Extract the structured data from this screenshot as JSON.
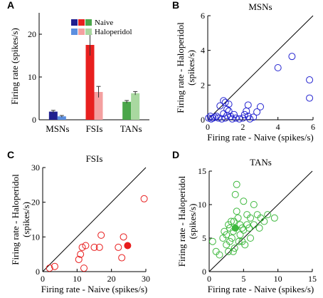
{
  "colors": {
    "msn_naive": "#1f1f8f",
    "msn_halo": "#5b8fe0",
    "fsi_naive": "#e8201f",
    "fsi_halo": "#f4a0a0",
    "tan_naive": "#4aa64a",
    "tan_halo": "#a9d8a0",
    "msn_marker": "#2424d0",
    "fsi_marker": "#e81c1c",
    "tan_marker": "#3db83d"
  },
  "chart_data": [
    {
      "id": "A",
      "type": "bar",
      "panel_label": "A",
      "ylabel": "Firing rate (spikes/s)",
      "ylim": [
        0,
        25
      ],
      "yticks": [
        0,
        10,
        20
      ],
      "categories": [
        "MSNs",
        "FSIs",
        "TANs"
      ],
      "series": [
        {
          "name": "Naive",
          "values": [
            1.9,
            17.5,
            4.2
          ],
          "errors": [
            0.3,
            2.5,
            0.3
          ]
        },
        {
          "name": "Haloperidol",
          "values": [
            0.8,
            6.5,
            6.2
          ],
          "errors": [
            0.2,
            1.3,
            0.4
          ]
        }
      ],
      "legend": {
        "placement": "top-right"
      }
    },
    {
      "id": "B",
      "type": "scatter",
      "panel_label": "B",
      "title": "MSNs",
      "xlabel": "Firing rate - Naive (spikes/s)",
      "ylabel": "Firing rate - Haloperidol (spikes/s)",
      "xlim": [
        0,
        6
      ],
      "ylim": [
        0,
        6
      ],
      "xticks": [
        0,
        2,
        4,
        6
      ],
      "yticks": [
        0,
        2,
        4,
        6
      ],
      "identity_line": true,
      "points": [
        [
          0.3,
          0.1
        ],
        [
          0.4,
          0.15
        ],
        [
          0.2,
          0.05
        ],
        [
          0.5,
          0.2
        ],
        [
          0.6,
          0.1
        ],
        [
          0.8,
          0.05
        ],
        [
          1.0,
          0.1
        ],
        [
          1.1,
          0.25
        ],
        [
          0.9,
          0.35
        ],
        [
          1.2,
          0.5
        ],
        [
          1.3,
          0.2
        ],
        [
          1.5,
          0.3
        ],
        [
          1.6,
          0.1
        ],
        [
          1.8,
          0.05
        ],
        [
          2.0,
          0.1
        ],
        [
          2.1,
          0.3
        ],
        [
          2.2,
          0.5
        ],
        [
          2.3,
          0.2
        ],
        [
          2.4,
          0.05
        ],
        [
          2.6,
          0.15
        ],
        [
          2.8,
          0.45
        ],
        [
          3.0,
          0.75
        ],
        [
          0.7,
          0.8
        ],
        [
          0.9,
          1.1
        ],
        [
          1.0,
          1.0
        ],
        [
          1.2,
          0.9
        ],
        [
          2.3,
          0.85
        ],
        [
          1.1,
          0.6
        ],
        [
          0.15,
          0.2
        ],
        [
          4.0,
          3.0
        ],
        [
          4.8,
          3.65
        ],
        [
          5.8,
          2.3
        ],
        [
          5.8,
          1.25
        ],
        [
          0.05,
          0.1
        ],
        [
          1.4,
          0.05
        ]
      ],
      "filled_points": []
    },
    {
      "id": "C",
      "type": "scatter",
      "panel_label": "C",
      "title": "FSIs",
      "xlabel": "Firing rate - Naive (spikes/s)",
      "ylabel": "Firing rate - Haloperidol (spikes/s)",
      "xlim": [
        0,
        30
      ],
      "ylim": [
        0,
        30
      ],
      "xticks": [
        0,
        10,
        20,
        30
      ],
      "yticks": [
        0,
        10,
        20,
        30
      ],
      "identity_line": true,
      "points": [
        [
          2.0,
          1.0
        ],
        [
          3.5,
          1.5
        ],
        [
          10.5,
          3.5
        ],
        [
          11.0,
          5.0
        ],
        [
          11.5,
          7.0
        ],
        [
          12.0,
          1.0
        ],
        [
          15.0,
          7.0
        ],
        [
          16.5,
          7.0
        ],
        [
          17.0,
          10.5
        ],
        [
          22.0,
          7.0
        ],
        [
          23.0,
          4.0
        ],
        [
          23.5,
          10.0
        ],
        [
          29.5,
          21.0
        ],
        [
          12.5,
          7.5
        ]
      ],
      "filled_points": [
        [
          24.7,
          7.5
        ]
      ]
    },
    {
      "id": "D",
      "type": "scatter",
      "panel_label": "D",
      "title": "TANs",
      "xlabel": "Firing rate - Naive (spikes/s)",
      "ylabel": "Firing rate - Haloperidol (spikes/s)",
      "xlim": [
        0,
        15
      ],
      "ylim": [
        0,
        15
      ],
      "xticks": [
        0,
        5,
        10,
        15
      ],
      "yticks": [
        0,
        5,
        10,
        15
      ],
      "identity_line": true,
      "points": [
        [
          0.5,
          4.5
        ],
        [
          1.0,
          3.0
        ],
        [
          1.5,
          2.5
        ],
        [
          2.0,
          5.0
        ],
        [
          2.2,
          6.0
        ],
        [
          2.5,
          4.0
        ],
        [
          2.5,
          5.5
        ],
        [
          2.8,
          7.0
        ],
        [
          3.0,
          4.5
        ],
        [
          3.0,
          6.5
        ],
        [
          3.2,
          7.5
        ],
        [
          3.3,
          5.0
        ],
        [
          3.5,
          6.0
        ],
        [
          3.6,
          7.5
        ],
        [
          3.7,
          3.5
        ],
        [
          3.8,
          11.5
        ],
        [
          4.0,
          13.0
        ],
        [
          4.0,
          9.0
        ],
        [
          4.2,
          8.0
        ],
        [
          4.3,
          4.5
        ],
        [
          4.5,
          5.5
        ],
        [
          4.5,
          7.0
        ],
        [
          4.8,
          6.5
        ],
        [
          5.0,
          10.5
        ],
        [
          5.2,
          4.0
        ],
        [
          5.5,
          7.0
        ],
        [
          5.5,
          8.5
        ],
        [
          5.8,
          6.5
        ],
        [
          6.0,
          5.0
        ],
        [
          6.0,
          8.0
        ],
        [
          6.5,
          10.0
        ],
        [
          6.5,
          7.0
        ],
        [
          7.0,
          8.5
        ],
        [
          7.3,
          6.5
        ],
        [
          7.5,
          8.0
        ],
        [
          8.0,
          7.5
        ],
        [
          8.5,
          8.5
        ],
        [
          9.5,
          8.0
        ],
        [
          2.8,
          3.0
        ],
        [
          3.5,
          3.0
        ],
        [
          4.8,
          4.5
        ],
        [
          5.0,
          6.2
        ]
      ],
      "filled_points": [
        [
          3.8,
          6.5
        ]
      ]
    }
  ]
}
